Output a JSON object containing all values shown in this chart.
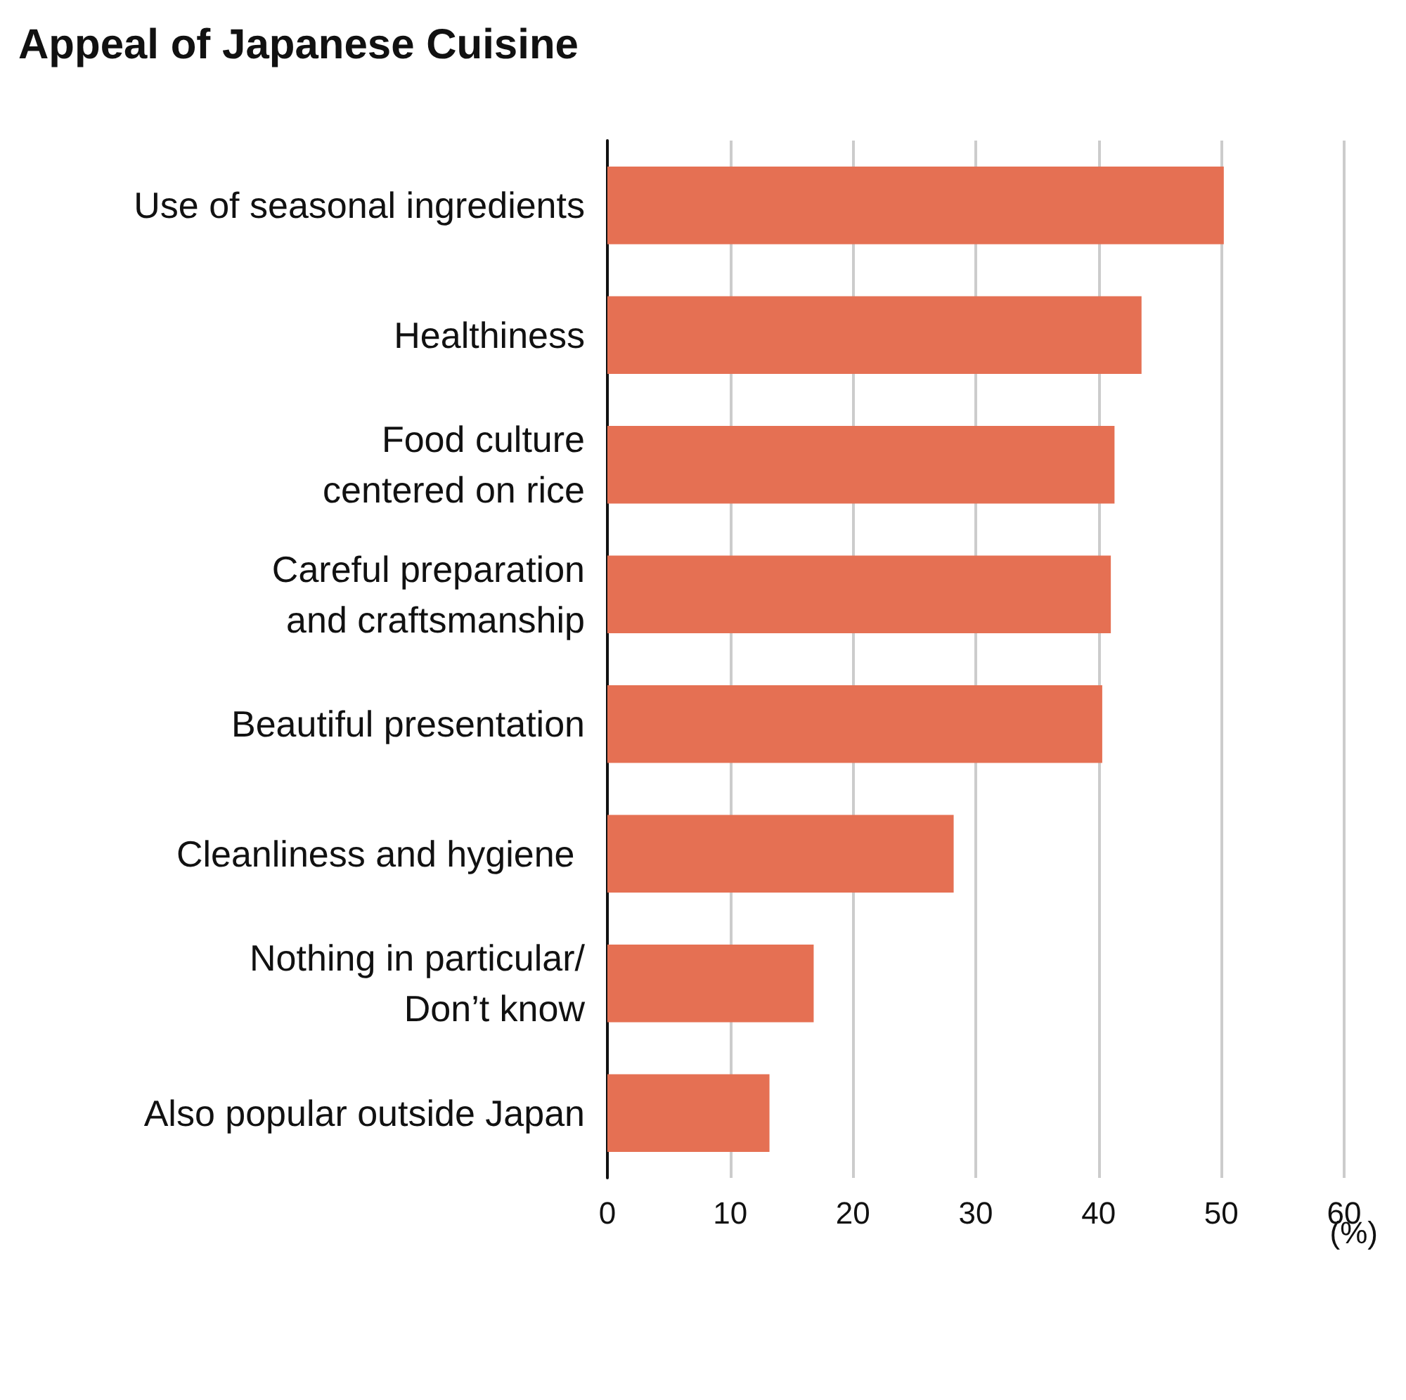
{
  "chart_data": {
    "type": "bar",
    "orientation": "horizontal",
    "title": "Appeal of Japanese Cuisine",
    "xlabel": "(%)",
    "categories": [
      "Use of seasonal ingredients",
      "Healthiness",
      "Food culture\ncentered on rice",
      "Careful preparation\nand craftsmanship",
      "Beautiful presentation",
      "Cleanliness and hygiene ",
      "Nothing in particular/\nDon’t know",
      "Also popular outside Japan"
    ],
    "values": [
      50.2,
      43.5,
      41.3,
      41.0,
      40.3,
      28.2,
      16.8,
      13.2
    ],
    "color": "#e57053",
    "xlim": [
      0,
      60
    ],
    "xticks": [
      0,
      10,
      20,
      30,
      40,
      50,
      60
    ],
    "grid": "x"
  }
}
